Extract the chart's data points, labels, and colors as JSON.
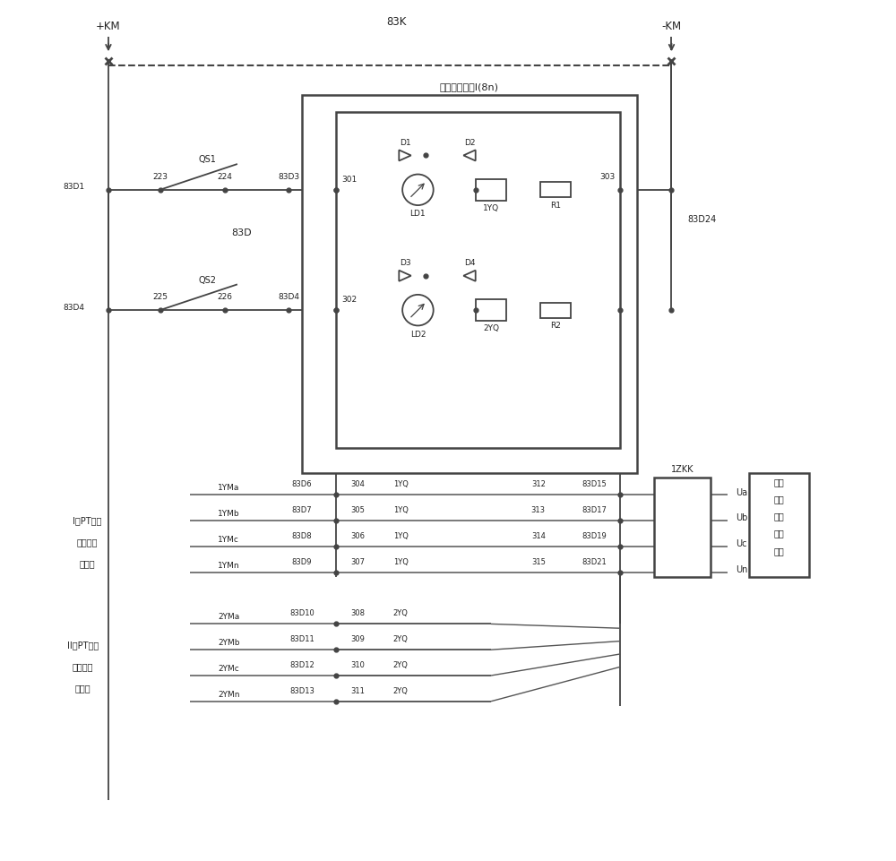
{
  "bg_color": "#ffffff",
  "lc": "#444444",
  "lw": 1.3,
  "figsize": [
    10.0,
    9.61
  ],
  "dpi": 100,
  "xlim": [
    0,
    100
  ],
  "ylim": [
    0,
    100
  ]
}
